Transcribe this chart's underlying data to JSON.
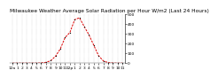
{
  "title": "Milwaukee Weather Average Solar Radiation per Hour W/m2 (Last 24 Hours)",
  "hours": [
    0,
    1,
    2,
    3,
    4,
    5,
    6,
    7,
    8,
    9,
    10,
    11,
    12,
    13,
    14,
    15,
    16,
    17,
    18,
    19,
    20,
    21,
    22,
    23
  ],
  "values": [
    0,
    0,
    0,
    0,
    0,
    0,
    2,
    8,
    25,
    70,
    145,
    260,
    310,
    440,
    460,
    370,
    285,
    180,
    75,
    22,
    5,
    1,
    0,
    0
  ],
  "line_color": "#dd0000",
  "bg_color": "#ffffff",
  "grid_color": "#999999",
  "ylim": [
    0,
    500
  ],
  "yticks": [
    0,
    100,
    200,
    300,
    400,
    500
  ],
  "title_fontsize": 4.2,
  "tick_fontsize": 3.2,
  "x_tick_every": 1
}
